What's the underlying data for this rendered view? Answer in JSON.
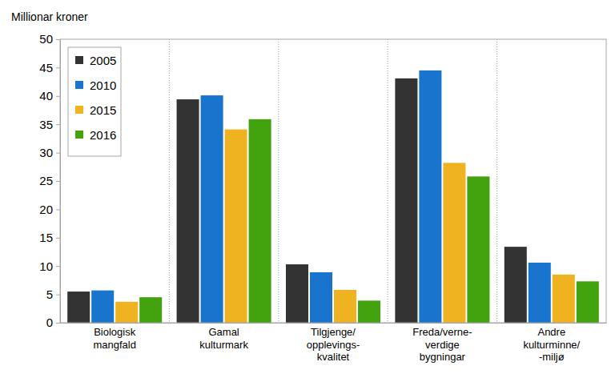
{
  "chart_data": {
    "type": "bar",
    "y_label": "Millionar kroner",
    "categories": [
      "Biologisk\nmangfald",
      "Gamal\nkulturmark",
      "Tilgjenge/\nopplevings-\nkvalitet",
      "Freda/verne-\nverdige\nbygningar",
      "Andre\nkulturminne/\n-miljø"
    ],
    "series": [
      {
        "name": "2005",
        "color": "#333333",
        "values": [
          5.5,
          39.4,
          10.3,
          43.1,
          13.4
        ]
      },
      {
        "name": "2010",
        "color": "#1874cd",
        "values": [
          5.7,
          40.1,
          8.9,
          44.5,
          10.6
        ]
      },
      {
        "name": "2015",
        "color": "#efb321",
        "values": [
          3.7,
          34.1,
          5.8,
          28.2,
          8.5
        ]
      },
      {
        "name": "2016",
        "color": "#43a30f",
        "values": [
          4.5,
          35.9,
          3.9,
          25.8,
          7.3
        ]
      }
    ],
    "ylim": [
      0,
      50
    ],
    "yticks": [
      0,
      5,
      10,
      15,
      20,
      25,
      30,
      35,
      40,
      45,
      50
    ],
    "grid": false,
    "legend": "upper left"
  }
}
